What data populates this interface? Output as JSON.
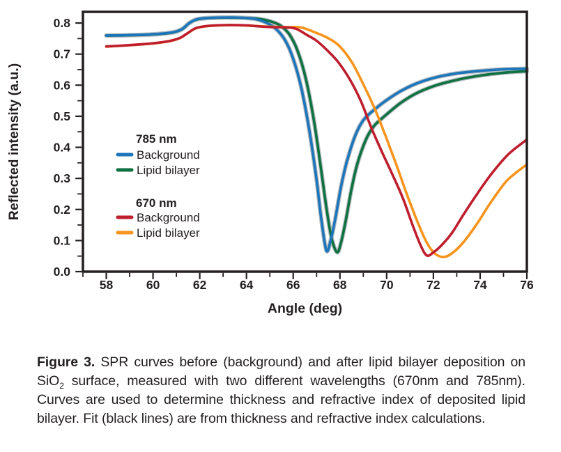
{
  "figure": {
    "caption_label": "Figure 3.",
    "caption_part1": "SPR curves before (background) and after lipid bilayer deposition on SiO",
    "caption_sub2": "2",
    "caption_part2": " surface, measured with two different wavelengths (670nm and 785nm). Curves are used to determine thickness and refractive index of deposited lipid bilayer. Fit (black lines) are from thickness and refractive index calculations."
  },
  "chart_data": {
    "type": "line",
    "title": "",
    "xlabel": "Angle (deg)",
    "ylabel": "Reflected intensity (a.u.)",
    "xlim": [
      57,
      76
    ],
    "ylim": [
      0,
      0.836
    ],
    "x_tick_labels": [
      58,
      60,
      62,
      64,
      66,
      68,
      70,
      72,
      74,
      76
    ],
    "x_minor_tick_step": 1,
    "y_tick_labels": [
      "0.0",
      "0.1",
      "0.2",
      "0.3",
      "0.4",
      "0.5",
      "0.6",
      "0.7",
      "0.8"
    ],
    "y_minor_tick_step": 0.05,
    "grid": false,
    "frame_color": "#231f20",
    "fit_line_color": "#b6bcc2",
    "fit_note": "Fit (black lines) lie mostly hidden beneath the colored curves",
    "legend": {
      "position": "inside-left",
      "groups": [
        {
          "title": "785 nm",
          "entries": [
            {
              "label": "Background",
              "color": "#1b75bb"
            },
            {
              "label": "Lipid bilayer",
              "color": "#0e7140"
            }
          ]
        },
        {
          "title": "670 nm",
          "entries": [
            {
              "label": "Background",
              "color": "#be1e2d"
            },
            {
              "label": "Lipid bilayer",
              "color": "#f7941e"
            }
          ]
        }
      ]
    },
    "series": [
      {
        "name": "785 nm Background",
        "color": "#1b75bb",
        "points": [
          [
            58,
            0.76
          ],
          [
            58.6,
            0.7605
          ],
          [
            59.2,
            0.7615
          ],
          [
            59.8,
            0.763
          ],
          [
            60.4,
            0.766
          ],
          [
            60.9,
            0.771
          ],
          [
            61.25,
            0.781
          ],
          [
            61.55,
            0.8
          ],
          [
            61.85,
            0.8115
          ],
          [
            62.2,
            0.8155
          ],
          [
            62.7,
            0.8175
          ],
          [
            63.3,
            0.818
          ],
          [
            63.9,
            0.8165
          ],
          [
            64.4,
            0.8125
          ],
          [
            64.85,
            0.801
          ],
          [
            65.25,
            0.782
          ],
          [
            65.65,
            0.745
          ],
          [
            66.0,
            0.685
          ],
          [
            66.35,
            0.59
          ],
          [
            66.7,
            0.45
          ],
          [
            67.0,
            0.295
          ],
          [
            67.2,
            0.17
          ],
          [
            67.42,
            0.068
          ],
          [
            67.6,
            0.1
          ],
          [
            67.8,
            0.17
          ],
          [
            68.05,
            0.275
          ],
          [
            68.3,
            0.355
          ],
          [
            68.65,
            0.437
          ],
          [
            69.0,
            0.487
          ],
          [
            69.45,
            0.52
          ],
          [
            70.0,
            0.552
          ],
          [
            70.6,
            0.581
          ],
          [
            71.3,
            0.606
          ],
          [
            72.1,
            0.625
          ],
          [
            73.0,
            0.638
          ],
          [
            74.0,
            0.646
          ],
          [
            75.0,
            0.651
          ],
          [
            76,
            0.653
          ]
        ]
      },
      {
        "name": "785 nm Lipid bilayer",
        "color": "#0e7140",
        "points": [
          [
            58,
            0.7595
          ],
          [
            58.6,
            0.76
          ],
          [
            59.2,
            0.761
          ],
          [
            59.8,
            0.7625
          ],
          [
            60.4,
            0.7655
          ],
          [
            60.9,
            0.7705
          ],
          [
            61.25,
            0.7805
          ],
          [
            61.55,
            0.7995
          ],
          [
            61.85,
            0.811
          ],
          [
            62.2,
            0.815
          ],
          [
            62.7,
            0.817
          ],
          [
            63.3,
            0.8175
          ],
          [
            63.9,
            0.8165
          ],
          [
            64.5,
            0.8135
          ],
          [
            65.0,
            0.806
          ],
          [
            65.45,
            0.792
          ],
          [
            65.85,
            0.762
          ],
          [
            66.2,
            0.708
          ],
          [
            66.55,
            0.617
          ],
          [
            66.9,
            0.48
          ],
          [
            67.2,
            0.325
          ],
          [
            67.45,
            0.19
          ],
          [
            67.65,
            0.105
          ],
          [
            67.88,
            0.062
          ],
          [
            68.05,
            0.095
          ],
          [
            68.25,
            0.165
          ],
          [
            68.5,
            0.268
          ],
          [
            68.75,
            0.348
          ],
          [
            69.1,
            0.423
          ],
          [
            69.45,
            0.468
          ],
          [
            70.0,
            0.506
          ],
          [
            70.6,
            0.543
          ],
          [
            71.3,
            0.575
          ],
          [
            72.1,
            0.599
          ],
          [
            73.0,
            0.617
          ],
          [
            74.0,
            0.631
          ],
          [
            75.0,
            0.64
          ],
          [
            76,
            0.645
          ]
        ]
      },
      {
        "name": "670 nm Background",
        "color": "#be1e2d",
        "points": [
          [
            58,
            0.7245
          ],
          [
            58.7,
            0.7275
          ],
          [
            59.4,
            0.731
          ],
          [
            60.1,
            0.7355
          ],
          [
            60.7,
            0.742
          ],
          [
            61.15,
            0.752
          ],
          [
            61.5,
            0.7685
          ],
          [
            61.8,
            0.7825
          ],
          [
            62.15,
            0.789
          ],
          [
            62.6,
            0.792
          ],
          [
            63.1,
            0.7935
          ],
          [
            63.6,
            0.7935
          ],
          [
            64.1,
            0.792
          ],
          [
            64.6,
            0.789
          ],
          [
            65.1,
            0.7868
          ],
          [
            65.6,
            0.7862
          ],
          [
            66.1,
            0.782
          ],
          [
            66.6,
            0.761
          ],
          [
            67.0,
            0.743
          ],
          [
            67.5,
            0.709
          ],
          [
            67.95,
            0.672
          ],
          [
            68.45,
            0.615
          ],
          [
            68.9,
            0.548
          ],
          [
            69.35,
            0.462
          ],
          [
            69.8,
            0.385
          ],
          [
            70.25,
            0.312
          ],
          [
            70.7,
            0.235
          ],
          [
            71.1,
            0.152
          ],
          [
            71.45,
            0.085
          ],
          [
            71.72,
            0.052
          ],
          [
            72.0,
            0.062
          ],
          [
            72.35,
            0.085
          ],
          [
            72.8,
            0.125
          ],
          [
            73.3,
            0.185
          ],
          [
            73.9,
            0.253
          ],
          [
            74.5,
            0.316
          ],
          [
            75.2,
            0.377
          ],
          [
            76,
            0.425
          ]
        ]
      },
      {
        "name": "670 nm Lipid bilayer",
        "color": "#f7941e",
        "points": [
          [
            58,
            0.724
          ],
          [
            58.7,
            0.727
          ],
          [
            59.4,
            0.7305
          ],
          [
            60.1,
            0.735
          ],
          [
            60.7,
            0.7415
          ],
          [
            61.15,
            0.7515
          ],
          [
            61.5,
            0.768
          ],
          [
            61.8,
            0.782
          ],
          [
            62.15,
            0.7885
          ],
          [
            62.6,
            0.7915
          ],
          [
            63.1,
            0.793
          ],
          [
            63.6,
            0.793
          ],
          [
            64.1,
            0.7915
          ],
          [
            64.6,
            0.7895
          ],
          [
            65.2,
            0.7875
          ],
          [
            65.8,
            0.787
          ],
          [
            66.35,
            0.7855
          ],
          [
            66.9,
            0.771
          ],
          [
            67.45,
            0.753
          ],
          [
            67.95,
            0.728
          ],
          [
            68.5,
            0.675
          ],
          [
            69.0,
            0.603
          ],
          [
            69.5,
            0.522
          ],
          [
            69.95,
            0.437
          ],
          [
            70.4,
            0.347
          ],
          [
            70.85,
            0.252
          ],
          [
            71.3,
            0.164
          ],
          [
            71.7,
            0.096
          ],
          [
            72.05,
            0.059
          ],
          [
            72.45,
            0.047
          ],
          [
            72.85,
            0.062
          ],
          [
            73.3,
            0.096
          ],
          [
            73.85,
            0.152
          ],
          [
            74.45,
            0.222
          ],
          [
            75.1,
            0.289
          ],
          [
            75.6,
            0.322
          ],
          [
            76,
            0.345
          ]
        ]
      }
    ]
  }
}
